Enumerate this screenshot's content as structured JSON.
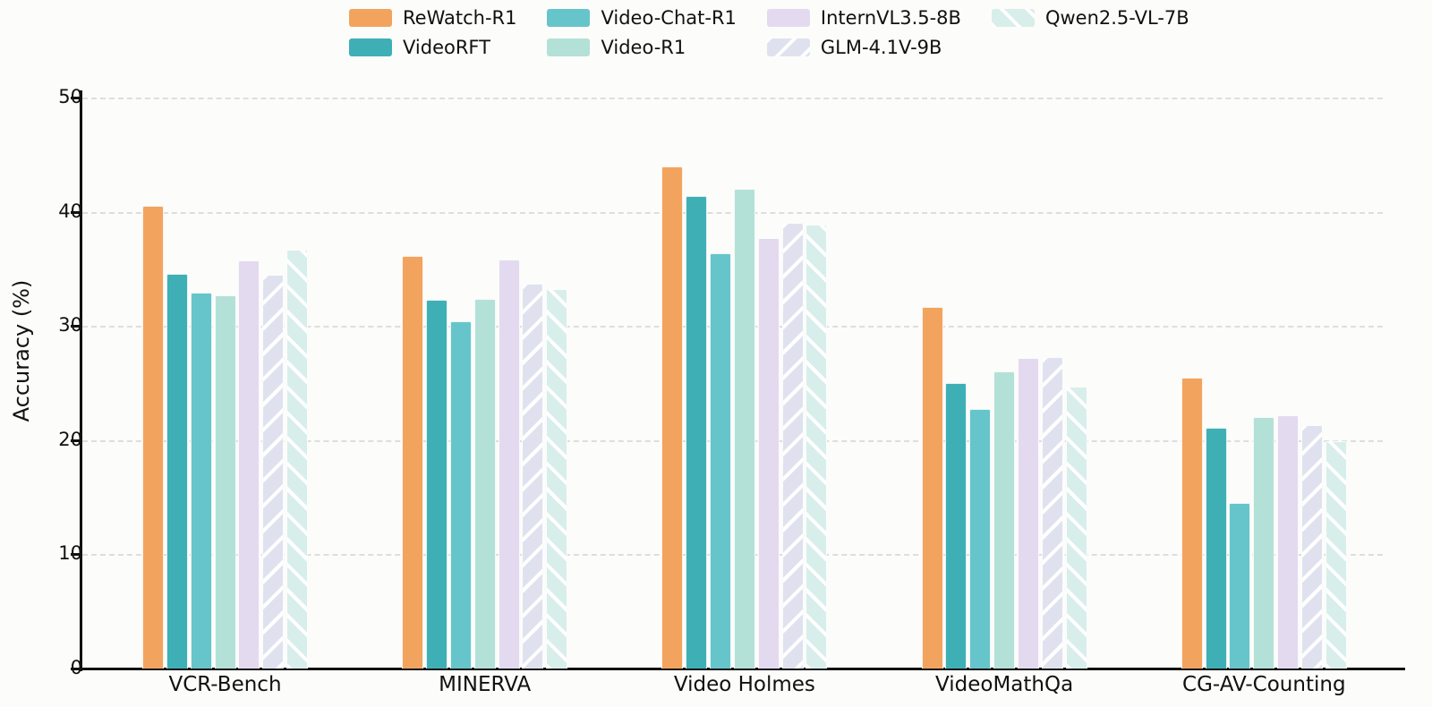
{
  "chart_data": {
    "type": "bar",
    "title": "",
    "xlabel": "",
    "ylabel": "Accuracy (%)",
    "ylim": [
      0,
      50
    ],
    "yticks": [
      0,
      10,
      20,
      30,
      40,
      50
    ],
    "grid": "horizontal-dashed",
    "legend_position": "top-center",
    "categories": [
      "VCR-Bench",
      "MINERVA",
      "Video Holmes",
      "VideoMathQa",
      "CG-AV-Counting"
    ],
    "series": [
      {
        "name": "ReWatch-R1",
        "color": "#F2A45F",
        "hatch": "none",
        "values": [
          40.5,
          36.1,
          44.0,
          31.7,
          25.5
        ]
      },
      {
        "name": "VideoRFT",
        "color": "#3FAFB6",
        "hatch": "none",
        "values": [
          34.6,
          32.3,
          41.4,
          25.0,
          21.1
        ]
      },
      {
        "name": "Video-Chat-R1",
        "color": "#66C5CB",
        "hatch": "none",
        "values": [
          32.9,
          30.4,
          36.4,
          22.7,
          14.5
        ]
      },
      {
        "name": "Video-R1",
        "color": "#B3E1D8",
        "hatch": "none",
        "values": [
          32.7,
          32.4,
          42.0,
          26.0,
          22.0
        ]
      },
      {
        "name": "InternVL3.5-8B",
        "color": "#E3DAF0",
        "hatch": "none",
        "values": [
          35.7,
          35.8,
          37.7,
          27.2,
          22.2
        ]
      },
      {
        "name": "GLM-4.1V-9B",
        "color": "#DFE2EE",
        "hatch": "/",
        "values": [
          34.5,
          33.7,
          39.0,
          27.3,
          21.3
        ]
      },
      {
        "name": "Qwen2.5-VL-7B",
        "color": "#D8EEEA",
        "hatch": "\\",
        "values": [
          36.7,
          33.2,
          38.9,
          24.7,
          19.9
        ]
      }
    ]
  },
  "axis": {
    "y_tick_labels": [
      "0",
      "10",
      "20",
      "30",
      "40",
      "50"
    ]
  },
  "colors": {
    "background": "#fcfcfa",
    "axis": "#111111",
    "grid": "#dededc",
    "hatch_stroke": "#ffffff"
  }
}
